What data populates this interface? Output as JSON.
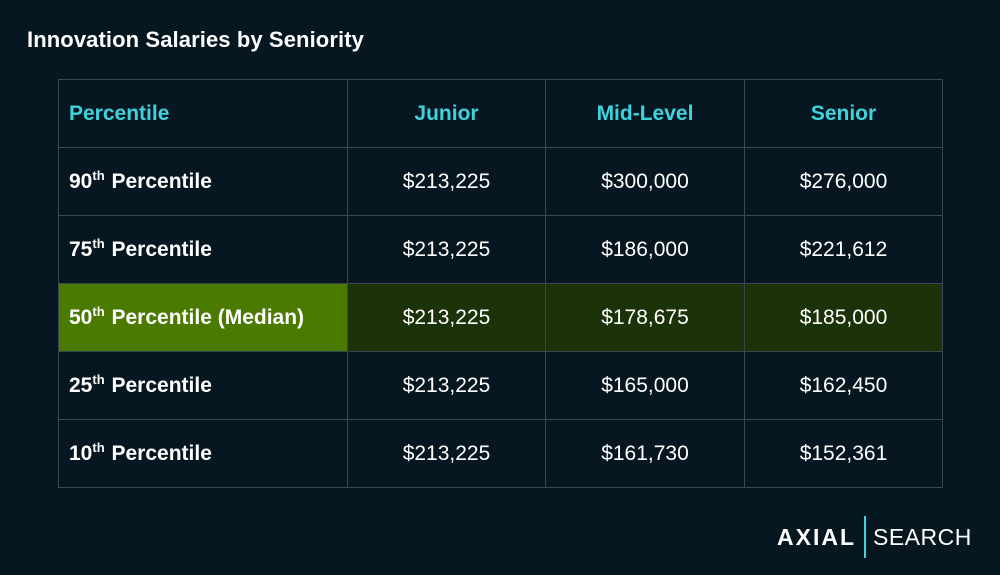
{
  "chart_data": {
    "type": "table",
    "title": "Innovation Salaries by Seniority",
    "columns": [
      "Percentile",
      "Junior",
      "Mid-Level",
      "Senior"
    ],
    "rows": [
      {
        "num": "90",
        "sup": "th",
        "label": "Percentile",
        "values": [
          "$213,225",
          "$300,000",
          "$276,000"
        ],
        "highlight": false
      },
      {
        "num": "75",
        "sup": "th",
        "label": "Percentile",
        "values": [
          "$213,225",
          "$186,000",
          "$221,612"
        ],
        "highlight": false
      },
      {
        "num": "50",
        "sup": "th",
        "label": "Percentile (Median)",
        "values": [
          "$213,225",
          "$178,675",
          "$185,000"
        ],
        "highlight": true
      },
      {
        "num": "25",
        "sup": "th",
        "label": "Percentile",
        "values": [
          "$213,225",
          "$165,000",
          "$162,450"
        ],
        "highlight": false
      },
      {
        "num": "10",
        "sup": "th",
        "label": "Percentile",
        "values": [
          "$213,225",
          "$161,730",
          "$152,361"
        ],
        "highlight": false
      }
    ]
  },
  "logo": {
    "left": "AXIAL",
    "right": "SEARCH"
  },
  "colors": {
    "background": "#061722",
    "header_text": "#3ed3dc",
    "highlight_label": "#4a7a00",
    "highlight_row": "#1c330a",
    "grid": "#3a4750"
  }
}
